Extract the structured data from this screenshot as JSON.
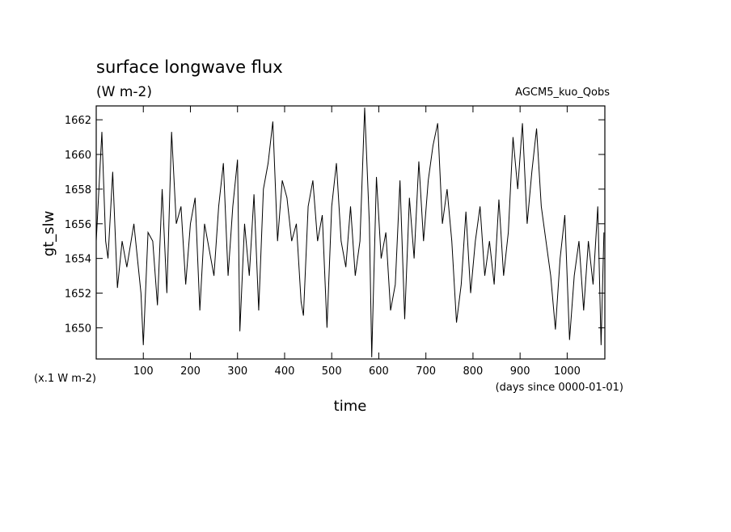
{
  "chart_data": {
    "type": "line",
    "title": "surface longwave flux",
    "subtitle": "(W m-2)",
    "annotation": "AGCM5_kuo_Qobs",
    "ylabel": "gt_slw",
    "xlabel": "time",
    "y_unit_note": "(x.1 W m-2)",
    "x_unit_note": "(days since 0000-01-01)",
    "xlim": [
      0,
      1080
    ],
    "ylim": [
      1648.2,
      1662.8
    ],
    "xticks": [
      100,
      200,
      300,
      400,
      500,
      600,
      700,
      800,
      900,
      1000
    ],
    "yticks": [
      1650,
      1652,
      1654,
      1656,
      1658,
      1660,
      1662
    ],
    "color": "#000000",
    "x": [
      0,
      12,
      20,
      25,
      35,
      45,
      55,
      65,
      80,
      95,
      100,
      110,
      120,
      130,
      140,
      150,
      160,
      170,
      180,
      190,
      200,
      210,
      220,
      230,
      240,
      250,
      260,
      270,
      280,
      290,
      300,
      305,
      315,
      325,
      335,
      345,
      355,
      365,
      375,
      385,
      395,
      405,
      415,
      425,
      435,
      440,
      450,
      460,
      470,
      480,
      490,
      500,
      510,
      520,
      530,
      540,
      550,
      560,
      570,
      580,
      585,
      595,
      605,
      615,
      625,
      635,
      645,
      655,
      665,
      675,
      685,
      695,
      705,
      715,
      725,
      735,
      745,
      755,
      765,
      775,
      785,
      795,
      805,
      815,
      825,
      835,
      845,
      855,
      865,
      875,
      885,
      895,
      905,
      915,
      925,
      935,
      945,
      955,
      965,
      975,
      985,
      995,
      1005,
      1015,
      1025,
      1035,
      1045,
      1055,
      1065,
      1072,
      1078
    ],
    "values": [
      1655,
      1661.3,
      1655,
      1654,
      1659,
      1652.3,
      1655,
      1653.5,
      1656,
      1652,
      1649,
      1655.5,
      1655,
      1651.3,
      1658,
      1652,
      1661.3,
      1656,
      1657,
      1652.5,
      1656,
      1657.5,
      1651,
      1656,
      1654.5,
      1653,
      1657,
      1659.5,
      1653,
      1657,
      1659.7,
      1649.8,
      1656,
      1653,
      1657.7,
      1651,
      1658,
      1659.5,
      1661.9,
      1655,
      1658.5,
      1657.5,
      1655,
      1656,
      1651.5,
      1650.7,
      1657,
      1658.5,
      1655,
      1656.5,
      1650,
      1657,
      1659.5,
      1655,
      1653.5,
      1657,
      1653,
      1655,
      1662.7,
      1656,
      1648.3,
      1658.7,
      1654,
      1655.5,
      1651,
      1652.5,
      1658.5,
      1650.5,
      1657.5,
      1654,
      1659.6,
      1655,
      1658.5,
      1660.5,
      1661.8,
      1656,
      1658,
      1655,
      1650.3,
      1652.5,
      1656.7,
      1652,
      1655,
      1657,
      1653,
      1655,
      1652.5,
      1657.4,
      1653,
      1655.5,
      1661,
      1658,
      1661.8,
      1656,
      1659,
      1661.5,
      1657,
      1655,
      1653,
      1649.9,
      1654,
      1656.5,
      1649.3,
      1653,
      1655,
      1651,
      1655,
      1652.5,
      1657,
      1649,
      1655.5
    ]
  }
}
